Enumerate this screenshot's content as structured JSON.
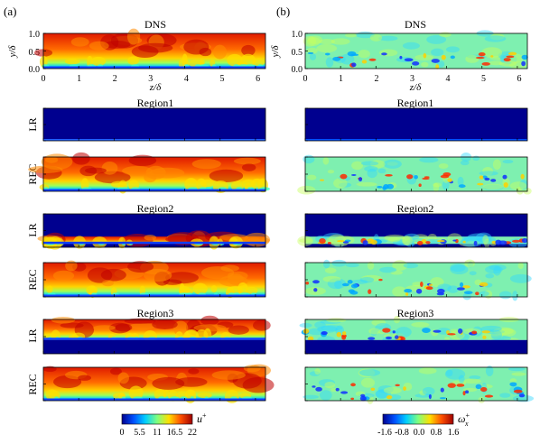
{
  "panels": [
    {
      "label": "(a)",
      "variable": "u",
      "variable_superscript": "+",
      "colorbar_ticks": [
        "0",
        "5.5",
        "11",
        "16.5",
        "22"
      ],
      "colormap": [
        "#00008f",
        "#0050ff",
        "#00cfff",
        "#7fff7f",
        "#ffdf00",
        "#ff5000",
        "#9f0000"
      ]
    },
    {
      "label": "(b)",
      "variable": "ω",
      "variable_subscript": "x",
      "variable_superscript": "+",
      "colorbar_ticks": [
        "-1.6",
        "-0.8",
        "0.0",
        "0.8",
        "1.6"
      ],
      "colormap": [
        "#00008f",
        "#0050ff",
        "#00cfff",
        "#7fff7f",
        "#ffdf00",
        "#ff5000",
        "#9f0000"
      ]
    }
  ],
  "rows": [
    {
      "title": "DNS",
      "side_label": ""
    },
    {
      "title": "Region1",
      "side_label": "LR"
    },
    {
      "title": "",
      "side_label": "REC"
    },
    {
      "title": "Region2",
      "side_label": "LR"
    },
    {
      "title": "",
      "side_label": "REC"
    },
    {
      "title": "Region3",
      "side_label": "LR"
    },
    {
      "title": "",
      "side_label": "REC"
    }
  ],
  "axes": {
    "y_label": "y/δ",
    "x_label": "z/δ",
    "y_ticks": [
      "0.0",
      "0.5",
      "1.0"
    ],
    "x_ticks": [
      "0",
      "1",
      "2",
      "3",
      "4",
      "5",
      "6"
    ]
  }
}
